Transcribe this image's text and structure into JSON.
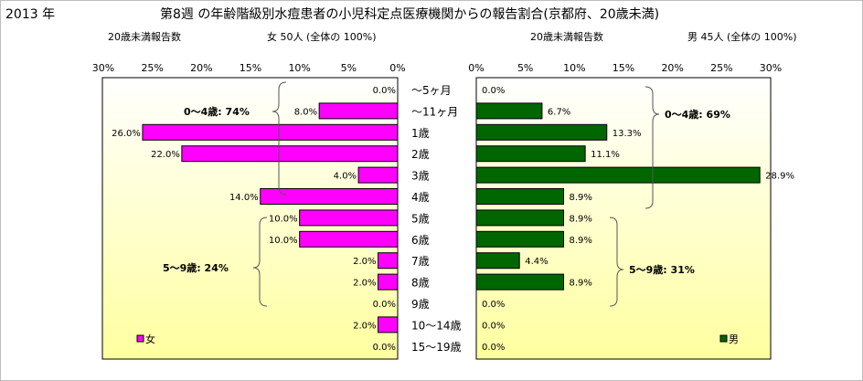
{
  "header": {
    "year": "2013 年",
    "title": "第8週 の年齢階級別水痘患者の小児科定点医療機関からの報告割合(京都府、20歳未満)"
  },
  "chart_data": {
    "type": "bar",
    "categories": [
      "～5ヶ月",
      "～11ヶ月",
      "1歳",
      "2歳",
      "3歳",
      "4歳",
      "5歳",
      "6歳",
      "7歳",
      "8歳",
      "9歳",
      "10～14歳",
      "15～19歳"
    ],
    "female": {
      "subtitle_left": "20歳未満報告数",
      "subtitle_right": "女  50人 (全体の  100%)",
      "legend": "女",
      "color": "#ff00ff",
      "values": [
        0.0,
        8.0,
        26.0,
        22.0,
        4.0,
        14.0,
        10.0,
        10.0,
        2.0,
        2.0,
        0.0,
        2.0,
        0.0
      ],
      "labels": [
        "0.0%",
        "8.0%",
        "26.0%",
        "22.0%",
        "4.0%",
        "14.0%",
        "10.0%",
        "10.0%",
        "2.0%",
        "2.0%",
        "0.0%",
        "2.0%",
        "0.0%"
      ],
      "xlim": [
        0,
        30
      ],
      "ticks": [
        "30%",
        "25%",
        "20%",
        "15%",
        "10%",
        "5%",
        "0%"
      ],
      "groups": [
        {
          "label": "0～4歳: 74%"
        },
        {
          "label": "5～9歳: 24%"
        }
      ]
    },
    "male": {
      "subtitle_left": "20歳未満報告数",
      "subtitle_right": "男  45人 (全体の  100%)",
      "legend": "男",
      "color": "#006600",
      "values": [
        0.0,
        6.7,
        13.3,
        11.1,
        28.9,
        8.9,
        8.9,
        8.9,
        4.4,
        8.9,
        0.0,
        0.0,
        0.0
      ],
      "labels": [
        "0.0%",
        "6.7%",
        "13.3%",
        "11.1%",
        "28.9%",
        "8.9%",
        "8.9%",
        "8.9%",
        "4.4%",
        "8.9%",
        "0.0%",
        "0.0%",
        "0.0%"
      ],
      "xlim": [
        0,
        30
      ],
      "ticks": [
        "0%",
        "5%",
        "10%",
        "15%",
        "20%",
        "25%",
        "30%"
      ],
      "groups": [
        {
          "label": "0～4歳: 69%"
        },
        {
          "label": "5～9歳: 31%"
        }
      ]
    }
  }
}
